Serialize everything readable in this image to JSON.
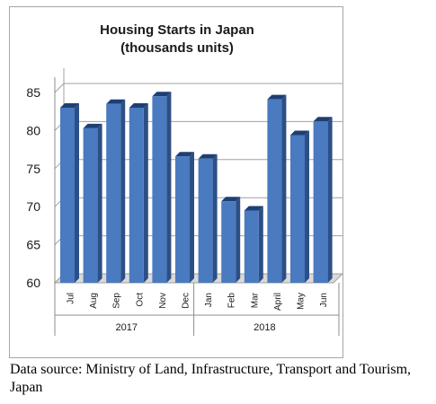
{
  "chart_data": {
    "type": "bar",
    "title": "Housing Starts in Japan",
    "subtitle": "(thousands units)",
    "categories": [
      "Jul",
      "Aug",
      "Sep",
      "Oct",
      "Nov",
      "Dec",
      "Jan",
      "Feb",
      "Mar",
      "April",
      "May",
      "Jun"
    ],
    "groups": [
      {
        "label": "2017",
        "categories": [
          "Jul",
          "Aug",
          "Sep",
          "Oct",
          "Nov",
          "Dec"
        ]
      },
      {
        "label": "2018",
        "categories": [
          "Jan",
          "Feb",
          "Mar",
          "April",
          "May",
          "Jun"
        ]
      }
    ],
    "values": [
      83.0,
      80.3,
      83.5,
      83.0,
      84.5,
      76.6,
      76.3,
      70.7,
      69.5,
      84.1,
      79.4,
      81.2
    ],
    "yticks": [
      60,
      65,
      70,
      75,
      80,
      85
    ],
    "ylim": [
      60,
      87
    ],
    "grid": true,
    "bar_color": "#4a7ac0",
    "bar_side_color": "#2c4f86",
    "bar_top_color": "#1e3f73"
  },
  "source_note": "Data source: Ministry of Land, Infrastructure, Transport and Tourism, Japan"
}
